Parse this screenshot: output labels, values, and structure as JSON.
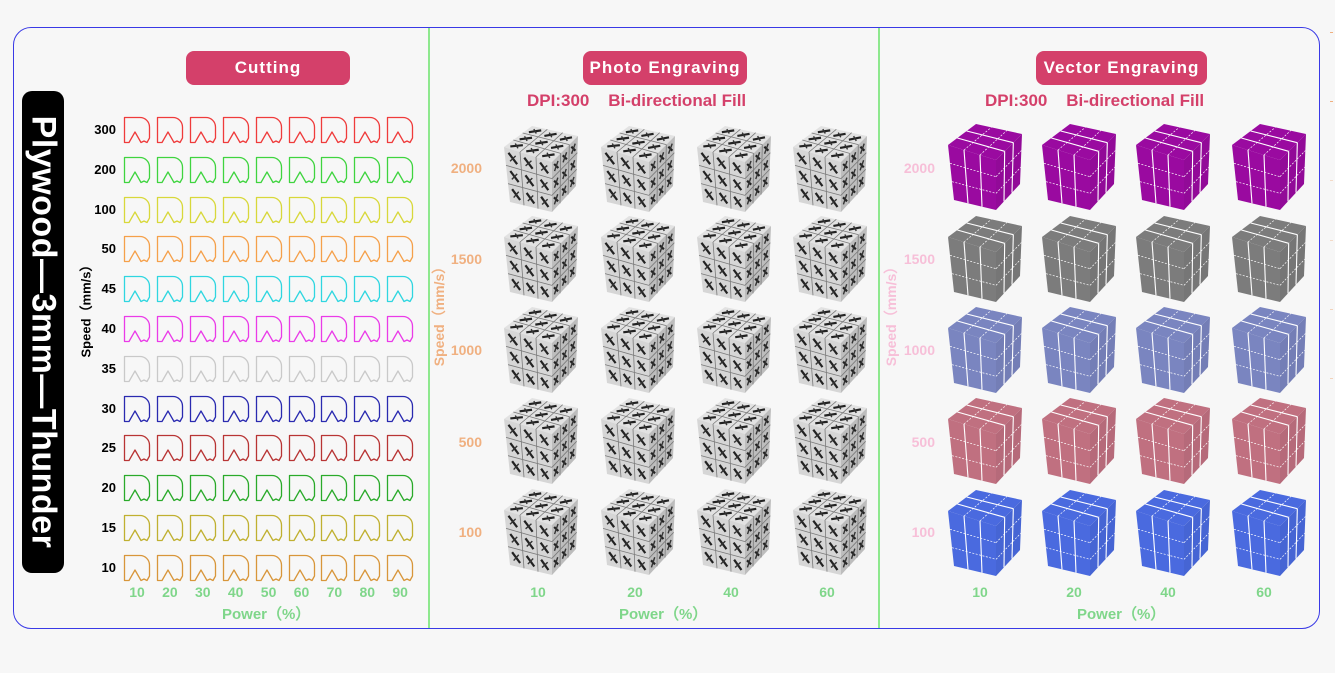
{
  "material_label": "Plywood—3mm—Thunder",
  "sections": {
    "cutting": {
      "title": "Cutting",
      "y_axis_title": "Speed（mm/s）",
      "x_axis_title": "Power（%）",
      "speeds": [
        "300",
        "200",
        "100",
        "50",
        "45",
        "40",
        "35",
        "30",
        "25",
        "20",
        "15",
        "10"
      ],
      "row_colors": [
        "#ef3b3b",
        "#3fd43f",
        "#d8d83a",
        "#f5a04a",
        "#2fd6e0",
        "#ea3be8",
        "#c9c9c9",
        "#2a2ab0",
        "#b83434",
        "#2aaa2a",
        "#c0b030",
        "#d8963a"
      ],
      "powers": [
        "10",
        "20",
        "30",
        "40",
        "50",
        "60",
        "70",
        "80",
        "90"
      ]
    },
    "photo": {
      "title": "Photo Engraving",
      "subtitle": "DPI:300    Bi-directional Fill",
      "y_axis_title": "Speed（mm/s）",
      "x_axis_title": "Power（%）",
      "speeds": [
        "2000",
        "1500",
        "1000",
        "500",
        "100"
      ],
      "powers": [
        "10",
        "20",
        "40",
        "60"
      ],
      "speed_label_color": "#f0b080"
    },
    "vector": {
      "title": "Vector Engraving",
      "subtitle": "DPI:300    Bi-directional Fill",
      "y_axis_title": "Speed（mm/s）",
      "x_axis_title": "Power（%）",
      "speeds": [
        "2000",
        "1500",
        "1000",
        "500",
        "100"
      ],
      "row_colors": [
        "#9a0aa0",
        "#7c7c7c",
        "#7a85c0",
        "#c07080",
        "#4a6adf"
      ],
      "powers": [
        "10",
        "20",
        "40",
        "60"
      ],
      "speed_label_color": "#f7bfd8"
    }
  },
  "colors": {
    "frame_border": "#3a3ae6",
    "divider": "#8ee88e",
    "badge_bg": "#d4406a",
    "axis_green": "#7fd68a"
  }
}
